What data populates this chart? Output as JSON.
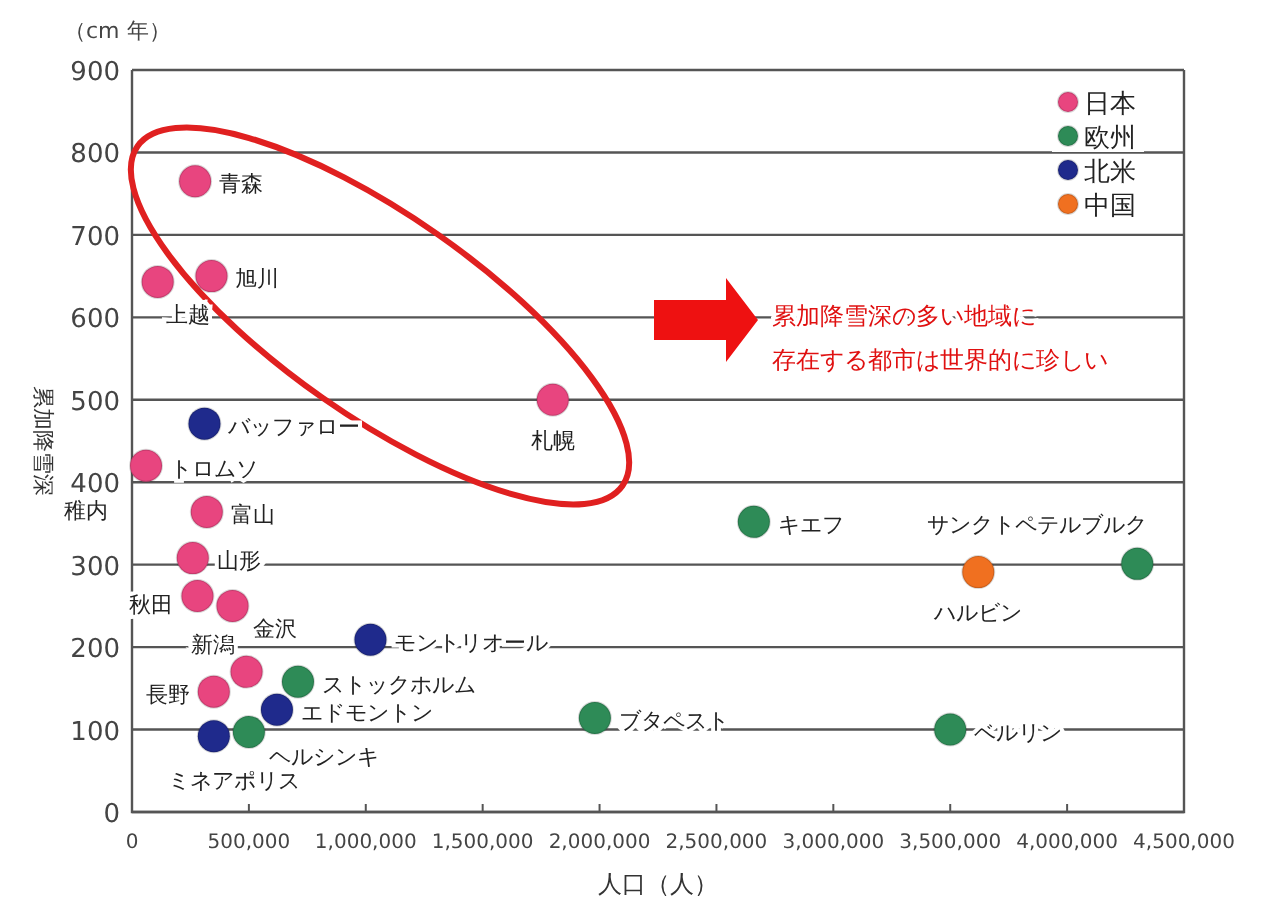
{
  "chart_data": {
    "type": "scatter",
    "xlabel": "人口（人）",
    "ylabel": "累加降雪深",
    "xlim": [
      0,
      4500000
    ],
    "ylim": [
      0,
      900
    ],
    "xticks": [
      {
        "value": 0,
        "label": "0"
      },
      {
        "value": 500000,
        "label": "500,000"
      },
      {
        "value": 1000000,
        "label": "1,000,000"
      },
      {
        "value": 1500000,
        "label": "1,500,000"
      },
      {
        "value": 2000000,
        "label": "2,000,000"
      },
      {
        "value": 2500000,
        "label": "2,500,000"
      },
      {
        "value": 3000000,
        "label": "3,000,000"
      },
      {
        "value": 3500000,
        "label": "3,500,000"
      },
      {
        "value": 4000000,
        "label": "4,000,000"
      },
      {
        "value": 4500000,
        "label": "4,500,000"
      }
    ],
    "yticks": [
      0,
      100,
      200,
      300,
      400,
      500,
      600,
      700,
      800,
      900
    ],
    "grid": "y",
    "legend": "top right",
    "marker": "circle",
    "series": [
      {
        "name": "日本",
        "color": "#e8457f",
        "x": [
          270000,
          340000,
          110000,
          1800000,
          60000,
          320000,
          260000,
          280000,
          430000,
          490000,
          350000
        ],
        "values": [
          765,
          650,
          643,
          500,
          420,
          364,
          308,
          262,
          250,
          170,
          146
        ]
      },
      {
        "name": "欧州",
        "color": "#2e8b57",
        "x": [
          710000,
          500000,
          1980000,
          2660000,
          4300000,
          3500000
        ],
        "values": [
          158,
          97,
          114,
          352,
          301,
          100
        ]
      },
      {
        "name": "北米",
        "color": "#1f2a8c",
        "x": [
          310000,
          1020000,
          620000,
          350000
        ],
        "values": [
          471,
          209,
          124,
          92
        ]
      },
      {
        "name": "中国",
        "color": "#f07020",
        "x": [
          3620000
        ],
        "values": [
          291
        ]
      }
    ],
    "annotations": [
      {
        "text": "青森",
        "x": 270000,
        "y": 765
      },
      {
        "text": "旭川",
        "x": 340000,
        "y": 650
      },
      {
        "text": "上越",
        "x": 110000,
        "y": 643
      },
      {
        "text": "札幌",
        "x": 1800000,
        "y": 500
      },
      {
        "text": "バッファロー",
        "x": 310000,
        "y": 471
      },
      {
        "text": "トロムソ",
        "x": 60000,
        "y": 420
      },
      {
        "text": "稚内",
        "x": 60000,
        "y": 420
      },
      {
        "text": "富山",
        "x": 320000,
        "y": 364
      },
      {
        "text": "山形",
        "x": 260000,
        "y": 308
      },
      {
        "text": "秋田",
        "x": 280000,
        "y": 262
      },
      {
        "text": "金沢",
        "x": 430000,
        "y": 250
      },
      {
        "text": "新潟",
        "x": 490000,
        "y": 170
      },
      {
        "text": "長野",
        "x": 350000,
        "y": 146
      },
      {
        "text": "モントリオール",
        "x": 1020000,
        "y": 209
      },
      {
        "text": "ストックホルム",
        "x": 710000,
        "y": 158
      },
      {
        "text": "エドモントン",
        "x": 620000,
        "y": 124
      },
      {
        "text": "ヘルシンキ",
        "x": 500000,
        "y": 97
      },
      {
        "text": "ミネアポリス",
        "x": 350000,
        "y": 92
      },
      {
        "text": "ブタペスト",
        "x": 1980000,
        "y": 114
      },
      {
        "text": "キエフ",
        "x": 2660000,
        "y": 352
      },
      {
        "text": "ハルビン",
        "x": 3620000,
        "y": 291
      },
      {
        "text": "サンクトペテルブルク",
        "x": 4300000,
        "y": 301
      },
      {
        "text": "ベルリン",
        "x": 3500000,
        "y": 100
      },
      "（cm 年）",
      "累加降雪深の多い地域に",
      "存在する都市は世界的に珍しい"
    ]
  }
}
